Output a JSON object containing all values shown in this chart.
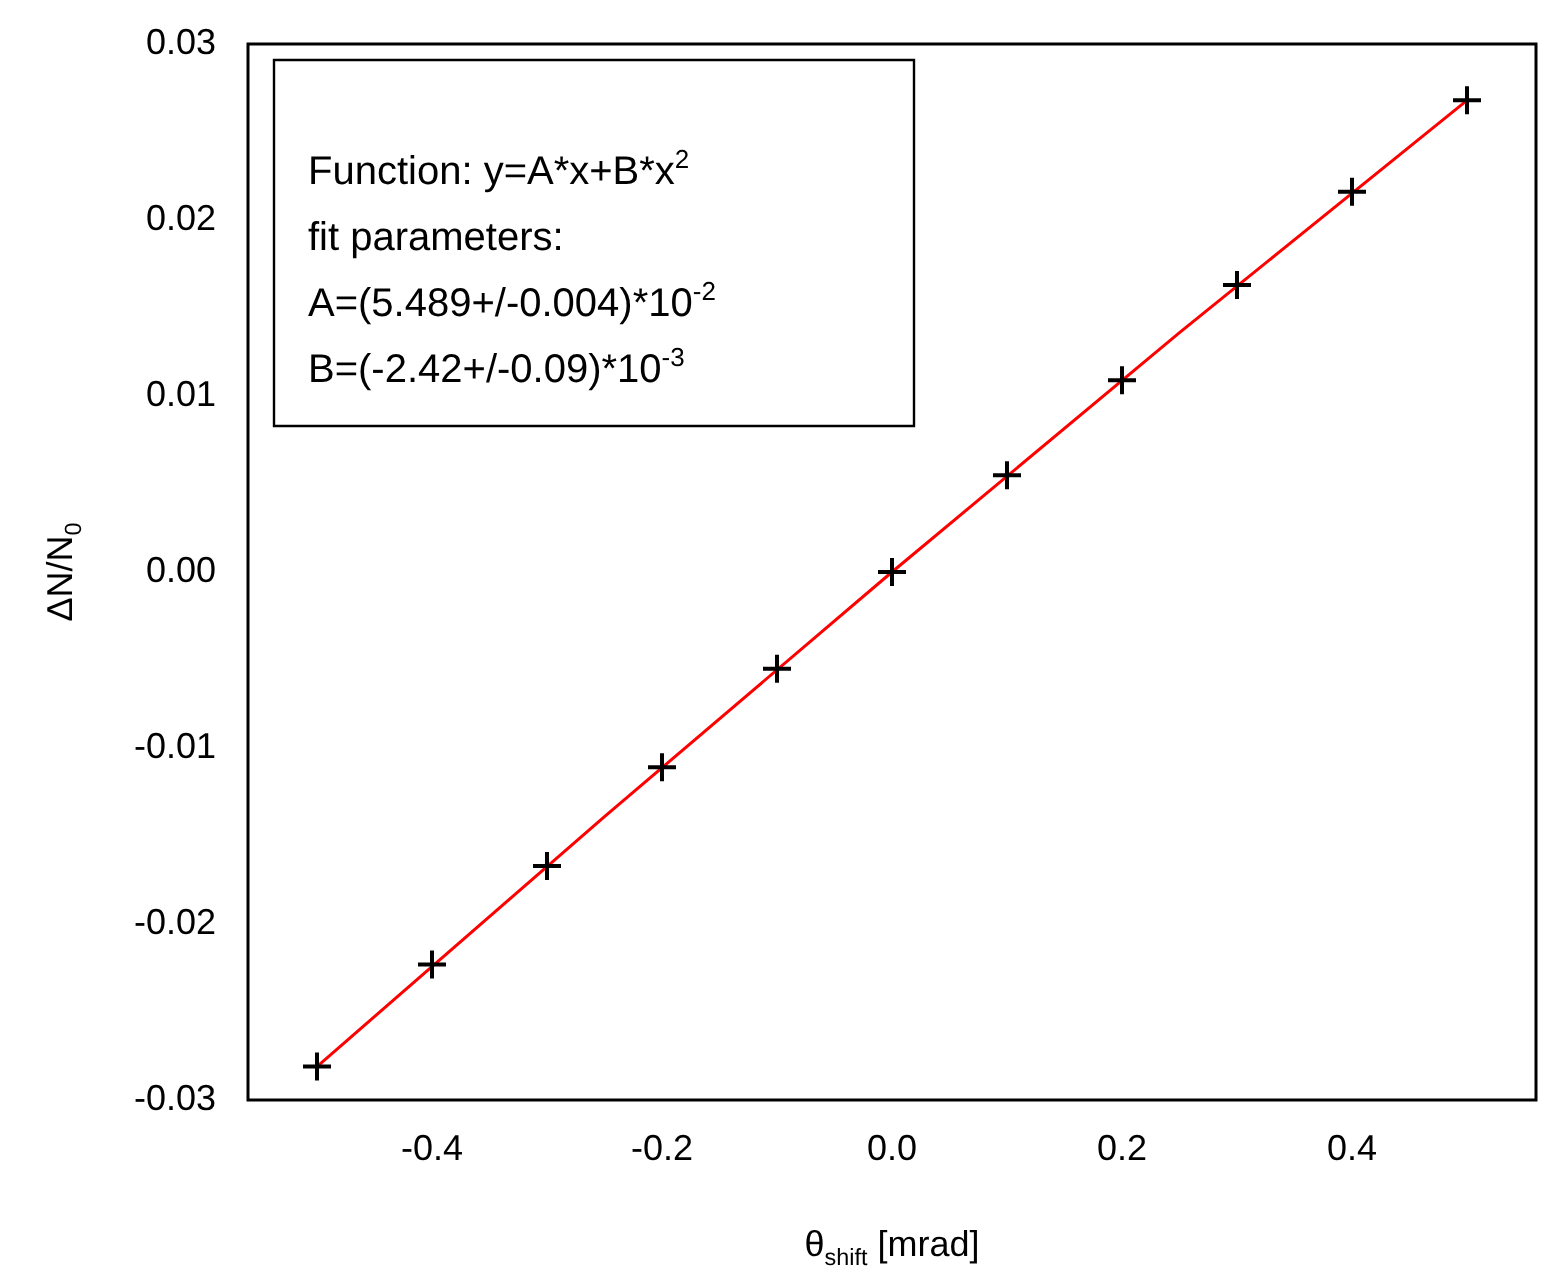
{
  "chart_data": {
    "type": "scatter",
    "xlabel": "θ$_{shift}$ [mrad]",
    "ylabel": "ΔN/N$_{0}$",
    "annotations": [
      "Function: y=A*x+B*x$^{2}$",
      "fit parameters:",
      "A=(5.489+/-0.004)*10$^{-2}$",
      "B=(-2.42+/-0.09)*10$^{-3}$"
    ],
    "x": [
      -0.5,
      -0.4,
      -0.3,
      -0.2,
      -0.1,
      0,
      0.1,
      0.2,
      0.3,
      0.4,
      0.5
    ],
    "series": [
      {
        "type": "line",
        "color": "#ff0000",
        "marker": "none",
        "x": [
          -0.5,
          -0.25,
          0,
          0.25,
          0.5
        ],
        "values": [
          -0.0281,
          -0.0139,
          0,
          0.0136,
          0.0268
        ]
      },
      {
        "type": "scatter",
        "color": "#000000",
        "marker": "cross",
        "values": [
          -0.0281,
          -0.0223,
          -0.0167,
          -0.0111,
          -0.0055,
          0,
          0.0055,
          0.0109,
          0.0163,
          0.0216,
          0.0268
        ]
      }
    ],
    "xlim": [
      -0.56,
      0.56
    ],
    "xticks": [
      {
        "value": -0.4,
        "label": "-0.4"
      },
      {
        "value": -0.2,
        "label": "-0.2"
      },
      {
        "value": 0,
        "label": "0.0"
      },
      {
        "value": 0.2,
        "label": "0.2"
      },
      {
        "value": 0.4,
        "label": "0.4"
      }
    ],
    "ylim": [
      -0.03,
      0.03
    ],
    "yticks": [
      {
        "value": -0.03,
        "label": "-0.03"
      },
      {
        "value": -0.02,
        "label": "-0.02"
      },
      {
        "value": -0.01,
        "label": "-0.01"
      },
      {
        "value": 0,
        "label": "0.00"
      },
      {
        "value": 0.01,
        "label": "0.01"
      },
      {
        "value": 0.02,
        "label": "0.02"
      },
      {
        "value": 0.03,
        "label": "0.03"
      }
    ],
    "grid": false,
    "legend": false
  }
}
